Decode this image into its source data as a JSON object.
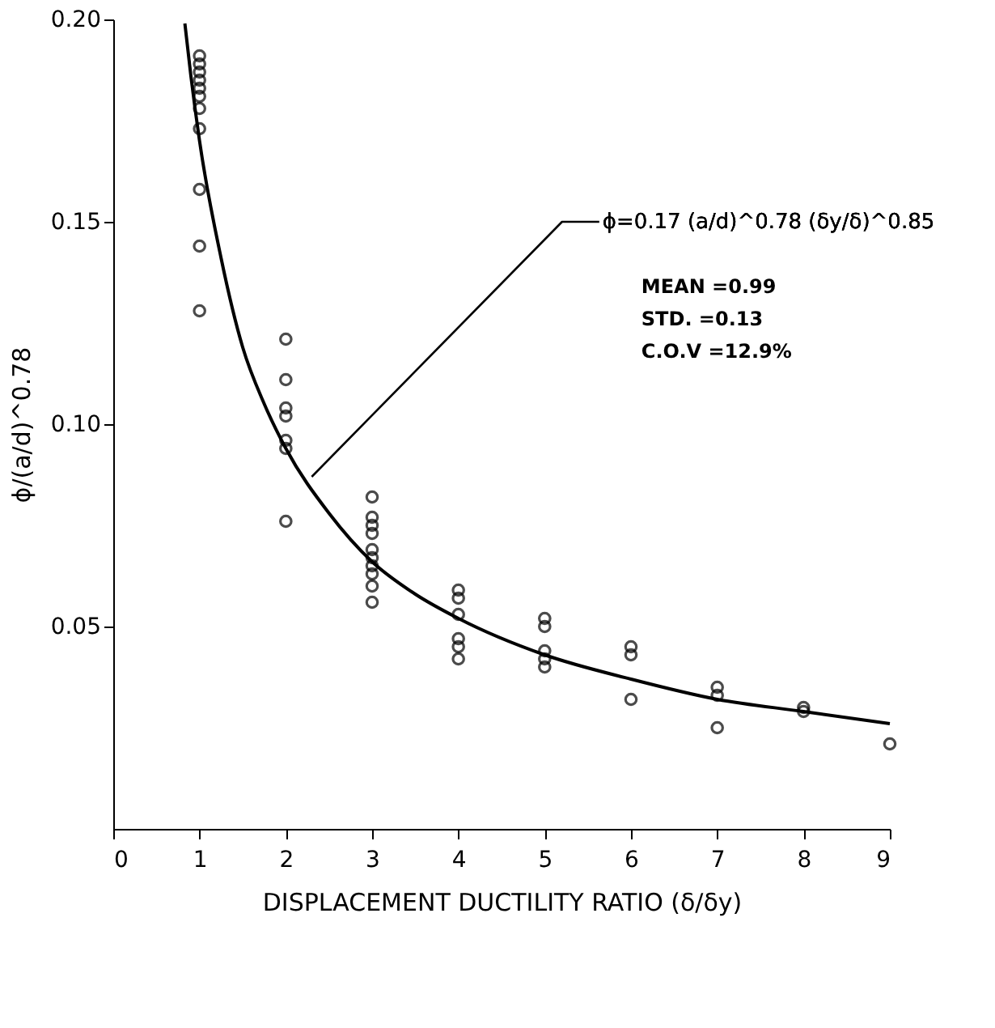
{
  "chart_data": {
    "type": "scatter",
    "xlabel": "DISPLACEMENT DUCTILITY RATIO (δ/δy)",
    "ylabel": "ϕ/(a/d)^0.78",
    "xlim": [
      0,
      9
    ],
    "ylim": [
      0,
      0.2
    ],
    "xticks": [
      0,
      1,
      2,
      3,
      4,
      5,
      6,
      7,
      8,
      9
    ],
    "yticks": [
      0.05,
      {
        "value": 0.1,
        "label": "0.10"
      },
      0.15,
      {
        "value": 0.2,
        "label": "0.20"
      }
    ],
    "grid": false,
    "marker": "circle",
    "series": [
      {
        "color": "#000000",
        "x": [
          1,
          1,
          1,
          1,
          1,
          1,
          1,
          1,
          1,
          1,
          1,
          2,
          2,
          2,
          2,
          2,
          2,
          2,
          3,
          3,
          3,
          3,
          3,
          3,
          3,
          3,
          3,
          3,
          4,
          4,
          4,
          4,
          4,
          4,
          5,
          5,
          5,
          5,
          5,
          6,
          6,
          6,
          7,
          7,
          7,
          8,
          8,
          9
        ],
        "values": [
          0.191,
          0.189,
          0.187,
          0.185,
          0.183,
          0.181,
          0.178,
          0.173,
          0.158,
          0.144,
          0.128,
          0.121,
          0.111,
          0.104,
          0.102,
          0.096,
          0.094,
          0.076,
          0.082,
          0.077,
          0.075,
          0.073,
          0.069,
          0.067,
          0.065,
          0.063,
          0.06,
          0.056,
          0.059,
          0.057,
          0.053,
          0.047,
          0.045,
          0.042,
          0.052,
          0.05,
          0.044,
          0.042,
          0.04,
          0.045,
          0.043,
          0.032,
          0.035,
          0.033,
          0.025,
          0.03,
          0.029,
          0.021
        ]
      },
      {
        "type": "line",
        "color": "#000000",
        "line_style": "solid",
        "marker": "none",
        "x": [
          0.83,
          0.9,
          1,
          1.25,
          1.5,
          1.75,
          2,
          2.5,
          3,
          3.5,
          4,
          5,
          6,
          7,
          8,
          9
        ],
        "values": [
          0.199,
          0.186,
          0.17,
          0.141,
          0.119,
          0.105,
          0.094,
          0.078,
          0.066,
          0.058,
          0.052,
          0.043,
          0.037,
          0.032,
          0.029,
          0.026
        ]
      }
    ],
    "annotations": [
      {
        "text": "ϕ=0.17 (a/d)^0.78 (δy/δ)^0.85",
        "x": 2.3,
        "y": 0.087
      },
      "MEAN =0.99",
      "STD. =0.13",
      "C.O.V =12.9%"
    ]
  }
}
